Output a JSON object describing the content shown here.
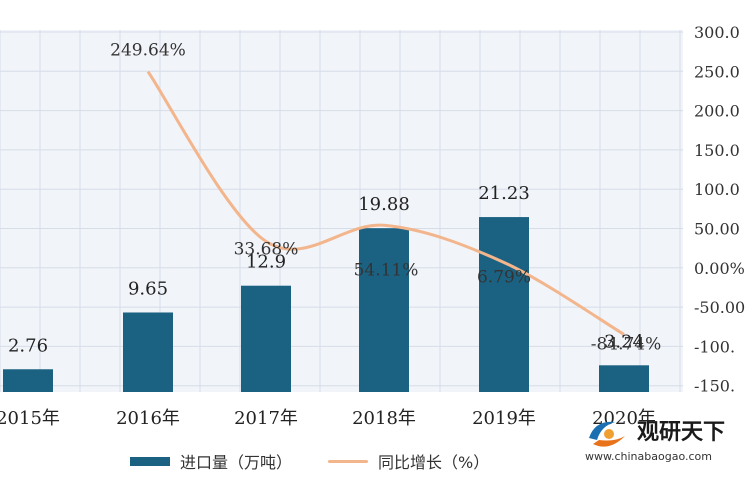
{
  "chart_data": {
    "type": "bar",
    "categories": [
      "2015年",
      "2016年",
      "2017年",
      "2018年",
      "2019年",
      "2020年"
    ],
    "series": [
      {
        "name": "进口量（万吨）",
        "type": "bar",
        "axis": "left",
        "values": [
          2.76,
          9.65,
          12.9,
          19.88,
          21.23,
          3.24
        ],
        "labels": [
          "2.76",
          "9.65",
          "12.9",
          "19.88",
          "21.23",
          "3.24"
        ],
        "color": "#1b6282"
      },
      {
        "name": "同比增长（%）",
        "type": "line",
        "axis": "right",
        "values": [
          null,
          249.64,
          33.68,
          54.11,
          6.79,
          -84.74
        ],
        "labels": [
          "",
          "249.64%",
          "33.68%",
          "54.11%",
          "6.79%",
          "-84.74%"
        ],
        "color": "#f2b58c"
      }
    ],
    "y_right": {
      "ticks": [
        300,
        250,
        200,
        150,
        100,
        50,
        0,
        -50,
        -100,
        -150
      ],
      "tick_labels": [
        "300.0",
        "250.0",
        "200.0",
        "150.0",
        "100.0",
        "50.00",
        "0.00%",
        "-50.00",
        "-100.",
        "-150."
      ],
      "range": [
        -150,
        300
      ]
    },
    "grid": true,
    "legend": "bottom"
  },
  "watermark": {
    "name": "观研天下",
    "url": "www.chinabaogao.com"
  }
}
